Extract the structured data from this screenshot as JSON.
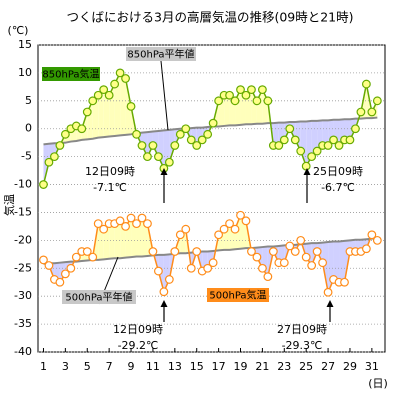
{
  "chart_data": {
    "type": "line",
    "title": "つくばにおける3月の高層気温の推移(09時と21時)",
    "y_unit": "(℃)",
    "ylabel": "気温",
    "xlabel": "(日)",
    "x": [
      1,
      1.5,
      2,
      2.5,
      3,
      3.5,
      4,
      4.5,
      5,
      5.5,
      6,
      6.5,
      7,
      7.5,
      8,
      8.5,
      9,
      9.5,
      10,
      10.5,
      11,
      11.5,
      12,
      12.5,
      13,
      13.5,
      14,
      14.5,
      15,
      15.5,
      16,
      16.5,
      17,
      17.5,
      18,
      18.5,
      19,
      19.5,
      20,
      20.5,
      21,
      21.5,
      22,
      22.5,
      23,
      23.5,
      24,
      24.5,
      25,
      25.5,
      26,
      26.5,
      27,
      27.5,
      28,
      28.5,
      29,
      29.5,
      30,
      30.5,
      31,
      31.5
    ],
    "xlim": [
      0.5,
      32.2
    ],
    "xticks": [
      1,
      3,
      5,
      7,
      9,
      11,
      13,
      15,
      17,
      19,
      21,
      23,
      25,
      27,
      29,
      31
    ],
    "ylim": [
      -40,
      15
    ],
    "yticks": [
      15,
      10,
      5,
      0,
      -5,
      -10,
      -15,
      -20,
      -25,
      -30,
      -35,
      -40
    ],
    "grid": true,
    "above_fill": "#ffffbb",
    "below_fill": "#d0d0ff",
    "series": [
      {
        "name": "850hPa気温",
        "color": "#66aa00",
        "marker_fill": "#ffff88",
        "label_box": "#339900",
        "values": [
          -10,
          -6,
          -5,
          -3,
          -1,
          0,
          0.5,
          0,
          3,
          5,
          6,
          7,
          6,
          8,
          10,
          9,
          4,
          -1,
          -3,
          -5,
          -3,
          -5,
          -7.1,
          -6,
          -3,
          -1,
          0,
          -2,
          -3,
          -2,
          -1,
          1,
          5,
          6,
          6,
          5,
          7,
          6,
          7,
          5,
          7,
          5,
          -3,
          -3,
          -2,
          0,
          -2,
          -4,
          -6.7,
          -5,
          -4,
          -3,
          -3,
          -2,
          -3,
          -2,
          -2,
          0,
          3,
          8,
          3,
          5
        ]
      },
      {
        "name": "850hPa平年値",
        "color": "#888888",
        "label_box": "#c8c8c8",
        "values": [
          -2.8,
          -2.7,
          -2.6,
          -2.6,
          -2.5,
          -2.3,
          -2.2,
          -2.0,
          -1.9,
          -1.8,
          -1.6,
          -1.5,
          -1.4,
          -1.3,
          -1.2,
          -1.1,
          -1.0,
          -0.8,
          -0.7,
          -0.6,
          -0.5,
          -0.4,
          -0.3,
          -0.2,
          -0.1,
          0.0,
          0.0,
          0.1,
          0.2,
          0.2,
          0.3,
          0.4,
          0.4,
          0.5,
          0.6,
          0.6,
          0.7,
          0.8,
          0.8,
          0.9,
          0.9,
          1.0,
          1.0,
          1.1,
          1.1,
          1.2,
          1.2,
          1.3,
          1.3,
          1.4,
          1.4,
          1.5,
          1.5,
          1.6,
          1.6,
          1.7,
          1.7,
          1.8,
          1.8,
          1.9,
          1.9,
          2.0
        ]
      },
      {
        "name": "500hPa気温",
        "color": "#ff8c1a",
        "marker_fill": "#ffffff",
        "label_box": "#ff8c1a",
        "values": [
          -23.5,
          -24.5,
          -27,
          -27.5,
          -26,
          -25,
          -23,
          -22,
          -22,
          -23,
          -17,
          -18,
          -17,
          -17,
          -16.5,
          -17.5,
          -16,
          -17,
          -16,
          -17,
          -22,
          -25.5,
          -29.2,
          -27,
          -22,
          -19,
          -18,
          -25,
          -22,
          -25.5,
          -25,
          -24,
          -19,
          -18,
          -17,
          -18,
          -15.5,
          -16.5,
          -22,
          -23,
          -25,
          -26.5,
          -22,
          -24,
          -24,
          -21,
          -22,
          -20,
          -23,
          -24.5,
          -22,
          -24,
          -29.3,
          -27,
          -27.5,
          -27.5,
          -22,
          -22,
          -22,
          -21.5,
          -19,
          -20
        ]
      },
      {
        "name": "500hPa平年値",
        "color": "#888888",
        "label_box": "#c8c8c8",
        "values": [
          -24.2,
          -24.1,
          -24.1,
          -24.0,
          -23.9,
          -23.8,
          -23.8,
          -23.7,
          -23.6,
          -23.5,
          -23.5,
          -23.4,
          -23.3,
          -23.2,
          -23.2,
          -23.1,
          -23.0,
          -22.9,
          -22.9,
          -22.8,
          -22.7,
          -22.6,
          -22.6,
          -22.5,
          -22.4,
          -22.3,
          -22.3,
          -22.2,
          -22.1,
          -22.0,
          -22.0,
          -21.9,
          -21.8,
          -21.7,
          -21.7,
          -21.6,
          -21.5,
          -21.4,
          -21.4,
          -21.3,
          -21.2,
          -21.1,
          -21.1,
          -21.0,
          -20.9,
          -20.8,
          -20.8,
          -20.7,
          -20.6,
          -20.5,
          -20.5,
          -20.4,
          -20.3,
          -20.2,
          -20.2,
          -20.1,
          -20.0,
          -19.9,
          -19.9,
          -19.8,
          -19.7,
          -19.6
        ]
      }
    ],
    "annotations": [
      "12日09時",
      "-7.1℃",
      "25日09時",
      "-6.7℃",
      "12日09時",
      "-29.2℃",
      "27日09時",
      "-29.3℃"
    ]
  }
}
